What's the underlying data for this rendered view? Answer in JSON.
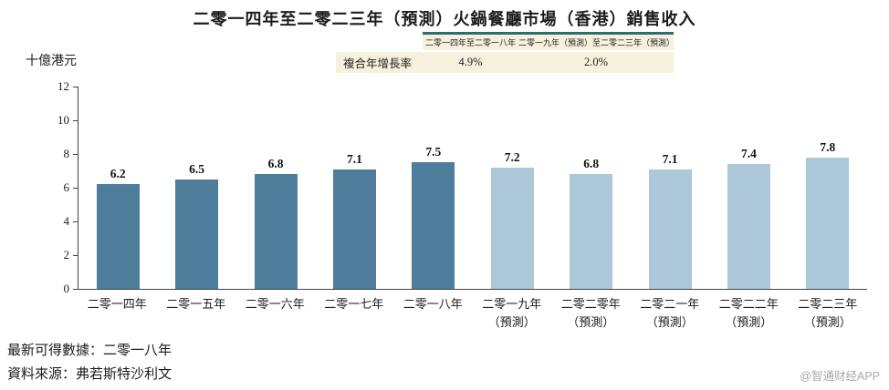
{
  "title": "二零一四年至二零二三年（預測）火鍋餐廳市場（香港）銷售收入",
  "cagr_table": {
    "row_label": "複合年增長率",
    "columns": [
      {
        "header": "二零一四年至二零一八年",
        "value": "4.9%"
      },
      {
        "header": "二零一九年（預測）至二零二三年（預測）",
        "value": "2.0%"
      }
    ],
    "accent_color": "#2a6e72",
    "background_color": "#f5f1dd"
  },
  "chart_data": {
    "type": "bar",
    "title": "二零一四年至二零二三年（預測）火鍋餐廳市場（香港）銷售收入",
    "ylabel": "十億港元",
    "ylim": [
      0,
      12
    ],
    "yticks": [
      0,
      2,
      4,
      6,
      8,
      10,
      12
    ],
    "grid": false,
    "value_labels": true,
    "categories": [
      "二零一四年",
      "二零一五年",
      "二零一六年",
      "二零一七年",
      "二零一八年",
      "二零一九年",
      "二零二零年",
      "二零二一年",
      "二零二二年",
      "二零二三年"
    ],
    "category_sublabels": [
      "",
      "",
      "",
      "",
      "",
      "（預測）",
      "（預測）",
      "（預測）",
      "（預測）",
      "（預測）"
    ],
    "values": [
      6.2,
      6.5,
      6.8,
      7.1,
      7.5,
      7.2,
      6.8,
      7.1,
      7.4,
      7.8
    ],
    "forecast_start_index": 5,
    "bar_colors": {
      "historical": "#4d7d9b",
      "forecast": "#abc7d8"
    }
  },
  "footnotes": {
    "latest": "最新可得數據：二零一八年",
    "source": "資料來源：弗若斯特沙利文"
  },
  "watermark": "@智通财经APP"
}
